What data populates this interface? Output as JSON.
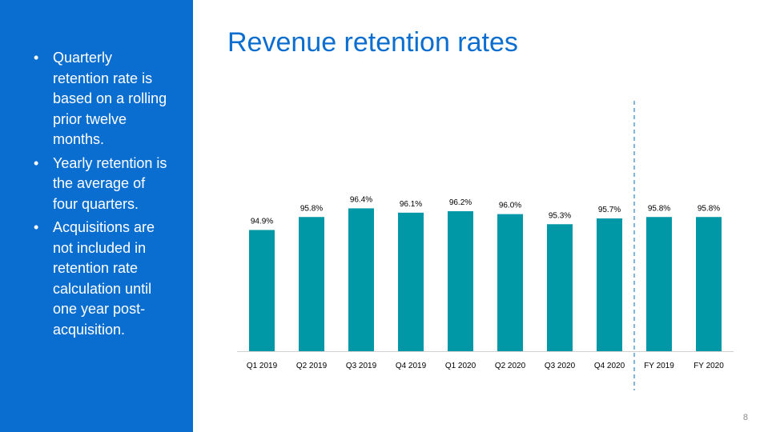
{
  "sidebar": {
    "bullets": [
      "Quarterly retention rate is based on a rolling prior twelve months.",
      "Yearly retention is the average of four quarters.",
      "Acquisitions are not included in retention rate calculation until one year post-acquisition."
    ]
  },
  "slide": {
    "title": "Revenue retention rates",
    "page_number": "8"
  },
  "colors": {
    "accent": "#0a6ed1",
    "bar": "#0097a7",
    "divider": "#3a8fd6"
  },
  "chart_data": {
    "type": "bar",
    "title": "",
    "xlabel": "",
    "ylabel": "",
    "categories": [
      "Q1 2019",
      "Q2 2019",
      "Q3 2019",
      "Q4 2019",
      "Q1 2020",
      "Q2 2020",
      "Q3 2020",
      "Q4 2020",
      "FY 2019",
      "FY 2020"
    ],
    "values": [
      94.9,
      95.8,
      96.4,
      96.1,
      96.2,
      96.0,
      95.3,
      95.7,
      95.8,
      95.8
    ],
    "data_labels": [
      "94.9%",
      "95.8%",
      "96.4%",
      "96.1%",
      "96.2%",
      "96.0%",
      "95.3%",
      "95.7%",
      "95.8%",
      "95.8%"
    ],
    "ylim": [
      86.5,
      97.2
    ],
    "grid": false,
    "legend": "none",
    "divider_after_category": "Q4 2020"
  }
}
